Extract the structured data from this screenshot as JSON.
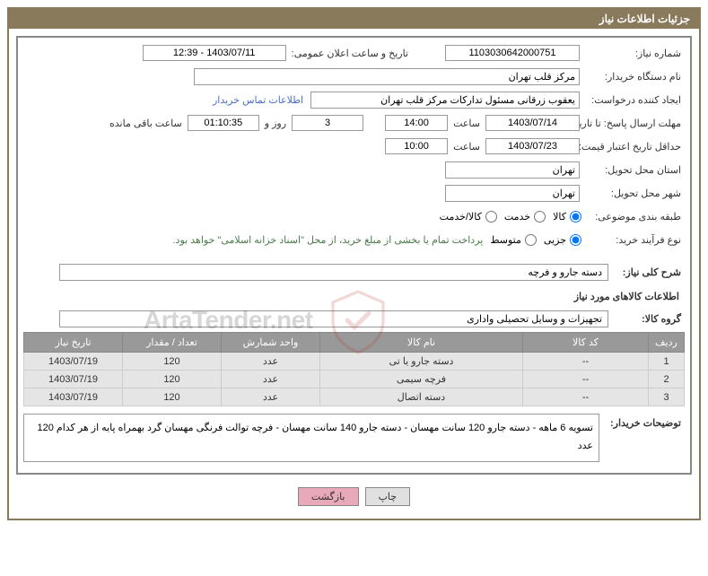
{
  "header": "جزئیات اطلاعات نیاز",
  "fields": {
    "need_number_label": "شماره نیاز:",
    "need_number": "1103030642000751",
    "announce_label": "تاریخ و ساعت اعلان عمومی:",
    "announce_date": "1403/07/11 - 12:39",
    "buyer_org_label": "نام دستگاه خریدار:",
    "buyer_org": "مرکز قلب تهران",
    "requester_label": "ایجاد کننده درخواست:",
    "requester": "یعقوب زرقانی مسئول تدارکات مرکز قلب تهران",
    "contact_link": "اطلاعات تماس خریدار",
    "deadline_label": "مهلت ارسال پاسخ: تا تاریخ:",
    "deadline_date": "1403/07/14",
    "time_label": "ساعت",
    "deadline_time": "14:00",
    "days_remaining": "3",
    "days_and_label": "روز و",
    "time_remaining": "01:10:35",
    "time_remaining_label": "ساعت باقی مانده",
    "validity_label": "حداقل تاریخ اعتبار قیمت: تا تاریخ:",
    "validity_date": "1403/07/23",
    "validity_time": "10:00",
    "province_label": "استان محل تحویل:",
    "province": "تهران",
    "city_label": "شهر محل تحویل:",
    "city": "تهران",
    "category_label": "طبقه بندی موضوعی:",
    "category_goods": "کالا",
    "category_service": "خدمت",
    "category_both": "کالا/خدمت",
    "process_label": "نوع فرآیند خرید:",
    "process_minor": "جزیی",
    "process_medium": "متوسط",
    "payment_note": "پرداخت تمام یا بخشی از مبلغ خرید، از محل \"اسناد خزانه اسلامی\" خواهد بود.",
    "main_desc_label": "شرح کلی نیاز:",
    "main_desc": "دسته جارو و فرچه",
    "goods_info_label": "اطلاعات کالاهای مورد نیاز",
    "group_label": "گروه کالا:",
    "group_value": "تجهیزات و وسایل تحصیلی واداری",
    "buyer_desc_label": "توضیحات خریدار:",
    "buyer_desc": "تسویه 6 ماهه - دسته جارو 120 سانت مهسان - دسته جارو 140 سانت مهسان - فرچه توالت فرنگی مهسان گرد بهمراه پایه از هر کدام 120 عدد"
  },
  "table": {
    "headers": {
      "row": "ردیف",
      "code": "کد کالا",
      "name": "نام کالا",
      "unit": "واحد شمارش",
      "qty": "تعداد / مقدار",
      "date": "تاریخ نیاز"
    },
    "rows": [
      {
        "row": "1",
        "code": "--",
        "name": "دسته جارو یا تی",
        "unit": "عدد",
        "qty": "120",
        "date": "1403/07/19"
      },
      {
        "row": "2",
        "code": "--",
        "name": "فرچه سیمی",
        "unit": "عدد",
        "qty": "120",
        "date": "1403/07/19"
      },
      {
        "row": "3",
        "code": "--",
        "name": "دسته اتصال",
        "unit": "عدد",
        "qty": "120",
        "date": "1403/07/19"
      }
    ]
  },
  "buttons": {
    "print": "چاپ",
    "back": "بازگشت"
  },
  "watermark": "ArtaTender.net"
}
